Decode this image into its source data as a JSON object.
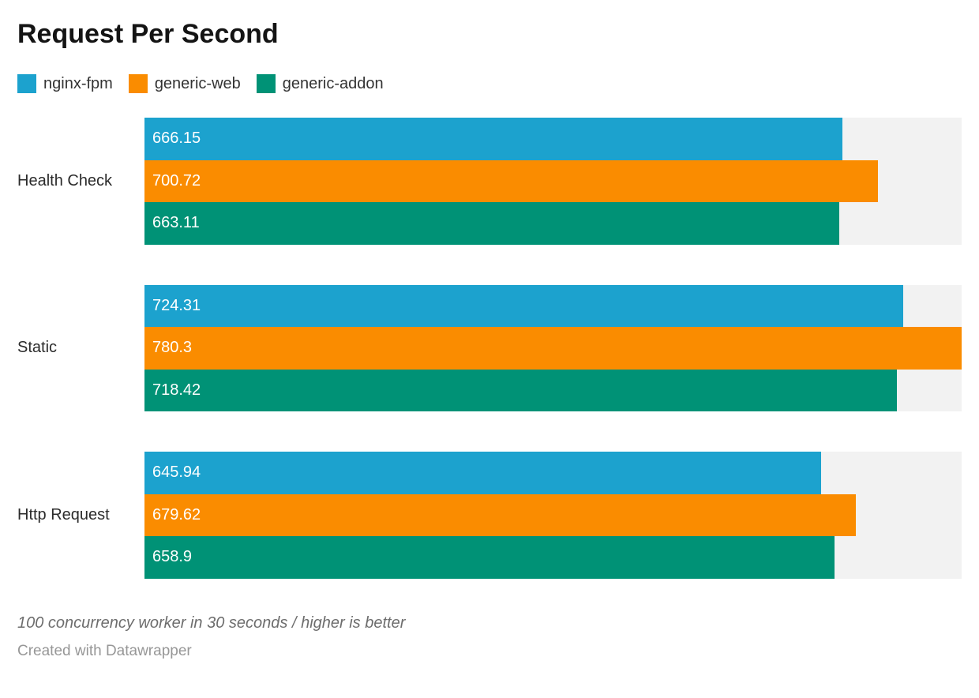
{
  "title": "Request Per Second",
  "notes": {
    "note": "100 concurrency worker in 30 seconds / higher is better",
    "credit": "Created with Datawrapper"
  },
  "colors": {
    "track": "#f2f2f2",
    "title_text": "#141414",
    "label_text": "#2b2b2b",
    "value_text": "#ffffff",
    "note_text": "#6d6d6d",
    "credit_text": "#979797"
  },
  "chart_data": {
    "type": "bar",
    "orientation": "horizontal",
    "title": "Request Per Second",
    "xlabel": "",
    "ylabel": "",
    "xlim": [
      0,
      780.3
    ],
    "grid": false,
    "legend_position": "top",
    "value_labels": true,
    "categories": [
      "Health Check",
      "Static",
      "Http Request"
    ],
    "series": [
      {
        "name": "nginx-fpm",
        "color": "#1ca2ce",
        "values": [
          666.15,
          724.31,
          645.94
        ]
      },
      {
        "name": "generic-web",
        "color": "#fa8c00",
        "values": [
          700.72,
          780.3,
          679.62
        ]
      },
      {
        "name": "generic-addon",
        "color": "#009276",
        "values": [
          663.11,
          718.42,
          658.9
        ]
      }
    ]
  }
}
